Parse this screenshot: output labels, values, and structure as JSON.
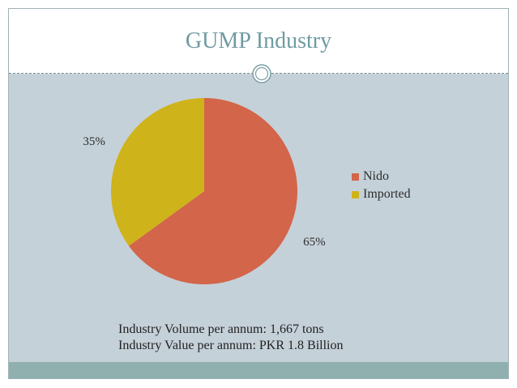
{
  "slide": {
    "title": "GUMP Industry",
    "notes": [
      "Industry Volume per annum: 1,667 tons",
      "Industry Value per annum: PKR 1.8 Billion"
    ]
  },
  "colors": {
    "nido": "#d3654a",
    "imported": "#cfb31a",
    "title": "#6f9ba2",
    "background": "#c5d1d9"
  },
  "chart_data": {
    "type": "pie",
    "title": "",
    "categories": [
      "Nido",
      "Imported"
    ],
    "values": [
      65,
      35
    ],
    "data_labels": [
      "65%",
      "35%"
    ],
    "legend": {
      "position": "right",
      "entries": [
        "Nido",
        "Imported"
      ]
    }
  }
}
